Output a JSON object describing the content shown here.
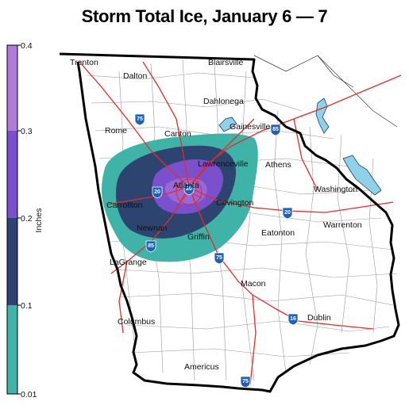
{
  "title": "Storm Total Ice, January 6 — 7",
  "legend": {
    "label": "Inches",
    "ticks": [
      "0.4",
      "0.3",
      "0.2",
      "0.1",
      "0.01"
    ],
    "colors": {
      "teal": "#3fb3a8",
      "navy": "#2d4470",
      "purple": "#7a50cc",
      "lavender": "#b17bd8"
    }
  },
  "cities": [
    {
      "name": "Trenton"
    },
    {
      "name": "Blairsville"
    },
    {
      "name": "Dalton"
    },
    {
      "name": "Dahlonega"
    },
    {
      "name": "Rome"
    },
    {
      "name": "Canton"
    },
    {
      "name": "Gainesville"
    },
    {
      "name": "Lawrenceville"
    },
    {
      "name": "Athens"
    },
    {
      "name": "Washington"
    },
    {
      "name": "Atlanta"
    },
    {
      "name": "Carrollton"
    },
    {
      "name": "Covington"
    },
    {
      "name": "Newnan"
    },
    {
      "name": "Griffin"
    },
    {
      "name": "Eatonton"
    },
    {
      "name": "Warrenton"
    },
    {
      "name": "LaGrange"
    },
    {
      "name": "Macon"
    },
    {
      "name": "Dublin"
    },
    {
      "name": "Columbus"
    },
    {
      "name": "Americus"
    }
  ],
  "shields": [
    "75",
    "85",
    "20",
    "20",
    "20",
    "85",
    "75",
    "16",
    "75"
  ]
}
